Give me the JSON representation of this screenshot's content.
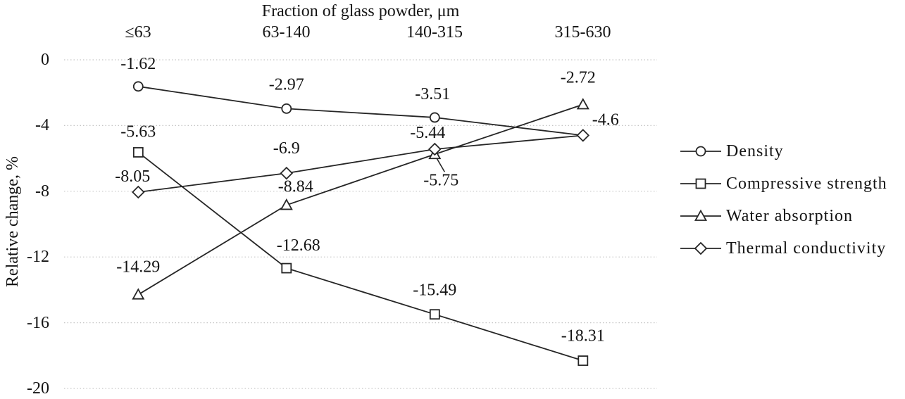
{
  "figure": {
    "background": "#ffffff"
  },
  "chart_data": {
    "type": "line",
    "title": "Fraction of glass powder, μm",
    "title_position": "top",
    "xlabel": "Fraction of glass powder, μm",
    "ylabel": "Relative change, %",
    "categories": [
      "≤63",
      "63-140",
      "140-315",
      "315-630"
    ],
    "ytick_labels": [
      "0",
      "-4",
      "-8",
      "-12",
      "-16",
      "-20"
    ],
    "yticks": [
      0,
      -4,
      -8,
      -12,
      -16,
      -20
    ],
    "ylim": [
      -20,
      0
    ],
    "grid": "horizontal dotted lines",
    "legend_position": "right",
    "colors": {
      "line": "#262626",
      "grid": "#c6c6c6",
      "text": "#141414",
      "marker_fill": "#ffffff",
      "background": "#ffffff"
    },
    "series": [
      {
        "name": "Density",
        "marker": "circle",
        "values": [
          -1.62,
          -2.97,
          -3.51,
          -4.6
        ],
        "labels": [
          "-1.62",
          "-2.97",
          "-3.51",
          ""
        ]
      },
      {
        "name": "Compressive strength",
        "marker": "square",
        "values": [
          -5.63,
          -12.68,
          -15.49,
          -18.31
        ],
        "labels": [
          "-5.63",
          "-12.68",
          "-15.49",
          "-18.31"
        ]
      },
      {
        "name": "Water absorption",
        "marker": "triangle",
        "values": [
          -14.29,
          -8.84,
          -5.75,
          -2.72
        ],
        "labels": [
          "-14.29",
          "-8.84",
          "-5.75",
          "-2.72"
        ]
      },
      {
        "name": "Thermal conductivity",
        "marker": "diamond",
        "values": [
          -8.05,
          -6.9,
          -5.44,
          -4.6
        ],
        "labels": [
          "-8.05",
          "-6.9",
          "-5.44",
          "-4.6"
        ]
      }
    ],
    "notes": "Density and Thermal conductivity coincide at -4.6 for fraction 315-630 (markers overlap, one shared label -4.6 shown)."
  }
}
